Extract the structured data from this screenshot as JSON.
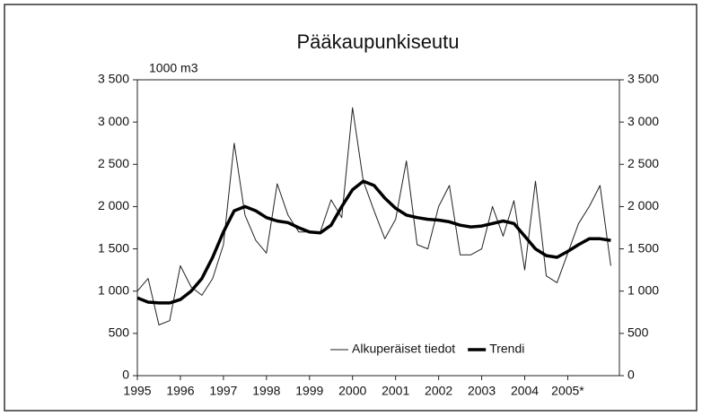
{
  "chart_data": {
    "type": "line",
    "title": "Pääkaupunkiseutu",
    "y_label": "1000 m3",
    "x": [
      1995,
      1995.25,
      1995.5,
      1995.75,
      1996,
      1996.25,
      1996.5,
      1996.75,
      1997,
      1997.25,
      1997.5,
      1997.75,
      1998,
      1998.25,
      1998.5,
      1998.75,
      1999,
      1999.25,
      1999.5,
      1999.75,
      2000,
      2000.25,
      2000.5,
      2000.75,
      2001,
      2001.25,
      2001.5,
      2001.75,
      2002,
      2002.25,
      2002.5,
      2002.75,
      2003,
      2003.25,
      2003.5,
      2003.75,
      2004,
      2004.25,
      2004.5,
      2004.75,
      2005,
      2005.25,
      2005.5,
      2005.75,
      2006
    ],
    "series": [
      {
        "name": "Alkuperäiset tiedot",
        "color": "#222222",
        "width": 1,
        "values": [
          1000,
          1150,
          600,
          650,
          1300,
          1050,
          950,
          1150,
          1550,
          2750,
          1900,
          1600,
          1450,
          2270,
          1900,
          1700,
          1700,
          1700,
          2080,
          1870,
          3170,
          2300,
          1950,
          1620,
          1850,
          2540,
          1550,
          1500,
          2000,
          2250,
          1430,
          1430,
          1500,
          2000,
          1650,
          2070,
          1250,
          2300,
          1180,
          1100,
          1450,
          1800,
          2000,
          2250,
          1300
        ]
      },
      {
        "name": "Trendi",
        "color": "#000000",
        "width": 3.5,
        "values": [
          920,
          870,
          860,
          860,
          900,
          1000,
          1150,
          1400,
          1700,
          1950,
          2000,
          1950,
          1870,
          1830,
          1810,
          1750,
          1700,
          1690,
          1780,
          2000,
          2200,
          2300,
          2250,
          2100,
          1980,
          1900,
          1870,
          1850,
          1840,
          1820,
          1780,
          1760,
          1770,
          1800,
          1830,
          1800,
          1650,
          1500,
          1420,
          1400,
          1470,
          1550,
          1620,
          1620,
          1600
        ]
      }
    ],
    "xlim": [
      1995,
      2006.2
    ],
    "xticks": [
      1995,
      1996,
      1997,
      1998,
      1999,
      2000,
      2001,
      2002,
      2003,
      2004,
      {
        "value": 2005,
        "label": "2005*"
      }
    ],
    "ylim": [
      0,
      3500
    ],
    "yticks": [
      0,
      500,
      {
        "value": 1000,
        "label": "1 000"
      },
      {
        "value": 1500,
        "label": "1 500"
      },
      {
        "value": 2000,
        "label": "2 000"
      },
      {
        "value": 2500,
        "label": "2 500"
      },
      {
        "value": 3000,
        "label": "3 000"
      },
      {
        "value": 3500,
        "label": "3 500"
      }
    ],
    "y2lim": [
      0,
      3500
    ],
    "y2ticks": [
      0,
      500,
      {
        "value": 1000,
        "label": "1 000"
      },
      {
        "value": 1500,
        "label": "1 500"
      },
      {
        "value": 2000,
        "label": "2 000"
      },
      {
        "value": 2500,
        "label": "2 500"
      },
      {
        "value": 3000,
        "label": "3 000"
      },
      {
        "value": 3500,
        "label": "3 500"
      }
    ],
    "legend": "lower-right",
    "grid": false
  }
}
